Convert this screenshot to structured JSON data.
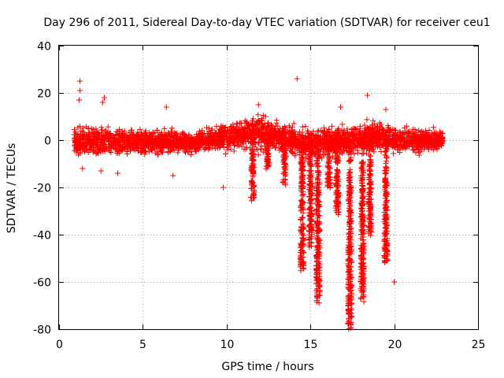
{
  "chart_data": {
    "type": "scatter",
    "title": "Day 296 of 2011, Sidereal Day-to-day VTEC variation (SDTVAR) for receiver ceu1",
    "xlabel": "GPS time / hours",
    "ylabel": "SDTVAR / TECUs",
    "xlim": [
      0,
      25
    ],
    "ylim": [
      -80,
      40
    ],
    "xticks": [
      0,
      5,
      10,
      15,
      20,
      25
    ],
    "yticks": [
      -80,
      -60,
      -40,
      -20,
      0,
      20,
      40
    ],
    "xtick_labels": [
      "0",
      "5",
      "10",
      "15",
      "20",
      "25"
    ],
    "ytick_labels": [
      "-80",
      "-60",
      "-40",
      "-20",
      "0",
      "20",
      "40"
    ],
    "grid": true,
    "marker": "plus",
    "color": "#ff0000",
    "series": [
      {
        "name": "SDTVAR",
        "x_range": [
          0.9,
          22.9
        ],
        "baseline_band": [
          {
            "x": 1.0,
            "low": -8,
            "high": 7
          },
          {
            "x": 5.0,
            "low": -7,
            "high": 6
          },
          {
            "x": 8.0,
            "low": -6,
            "high": 4
          },
          {
            "x": 10.0,
            "low": -5,
            "high": 8
          },
          {
            "x": 12.0,
            "low": -6,
            "high": 12
          },
          {
            "x": 13.5,
            "low": -7,
            "high": 8
          },
          {
            "x": 15.0,
            "low": -8,
            "high": 6
          },
          {
            "x": 17.0,
            "low": -8,
            "high": 8
          },
          {
            "x": 19.0,
            "low": -6,
            "high": 9
          },
          {
            "x": 21.0,
            "low": -6,
            "high": 5
          },
          {
            "x": 22.9,
            "low": -5,
            "high": 5
          }
        ],
        "dips": [
          {
            "center": 11.55,
            "width": 0.12,
            "depth": -25
          },
          {
            "center": 12.45,
            "width": 0.1,
            "depth": -12
          },
          {
            "center": 13.45,
            "width": 0.12,
            "depth": -18
          },
          {
            "center": 14.5,
            "width": 0.12,
            "depth": -55
          },
          {
            "center": 15.0,
            "width": 0.12,
            "depth": -45
          },
          {
            "center": 15.45,
            "width": 0.14,
            "depth": -69
          },
          {
            "center": 16.1,
            "width": 0.1,
            "depth": -20
          },
          {
            "center": 16.6,
            "width": 0.12,
            "depth": -30
          },
          {
            "center": 17.35,
            "width": 0.14,
            "depth": -79
          },
          {
            "center": 18.1,
            "width": 0.12,
            "depth": -68
          },
          {
            "center": 18.55,
            "width": 0.1,
            "depth": -40
          },
          {
            "center": 19.5,
            "width": 0.12,
            "depth": -52
          }
        ],
        "outliers": [
          [
            1.25,
            25
          ],
          [
            1.25,
            21
          ],
          [
            1.2,
            17
          ],
          [
            2.7,
            18
          ],
          [
            2.6,
            16
          ],
          [
            6.4,
            14
          ],
          [
            14.2,
            26
          ],
          [
            18.4,
            19
          ],
          [
            19.5,
            13
          ],
          [
            20.0,
            -60
          ],
          [
            9.8,
            -20
          ],
          [
            3.5,
            -14
          ],
          [
            6.8,
            -15
          ],
          [
            1.4,
            -12
          ],
          [
            2.5,
            -13
          ],
          [
            16.8,
            14
          ],
          [
            11.9,
            15
          ]
        ]
      }
    ]
  }
}
